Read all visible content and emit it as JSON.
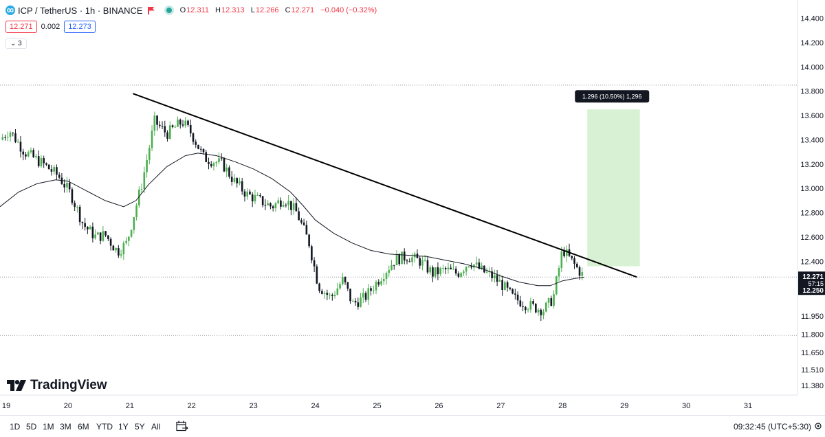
{
  "header": {
    "symbol": "ICP / TetherUS · 1h · BINANCE",
    "ohlc": {
      "open_label": "O",
      "open": "12.311",
      "high_label": "H",
      "high": "12.313",
      "low_label": "L",
      "low": "12.266",
      "close_label": "C",
      "close": "12.271",
      "change": "−0.040 (−0.32%)"
    },
    "bid": "12.271",
    "spread": "0.002",
    "ask": "12.273",
    "indicators_toggle": "3"
  },
  "logo_text": "TradingView",
  "colors": {
    "up": "#4caf50",
    "down": "#131722",
    "ma": "#131722",
    "trendline": "#000000",
    "target_zone": "#d8f0d3",
    "bid": "#f23645",
    "ask": "#2962ff"
  },
  "toolbar": {
    "timeframes": [
      "1D",
      "5D",
      "1M",
      "3M",
      "6M",
      "YTD",
      "1Y",
      "5Y",
      "All"
    ],
    "clock": "09:32:45 (UTC+5:30)"
  },
  "chart_data": {
    "type": "candlestick",
    "price_ticks": [
      "14.400",
      "14.200",
      "14.000",
      "13.800",
      "13.600",
      "13.400",
      "13.200",
      "13.000",
      "12.800",
      "12.600",
      "12.400",
      "12.250",
      "11.950",
      "11.800",
      "11.650",
      "11.510",
      "11.380"
    ],
    "date_ticks": [
      "19",
      "20",
      "21",
      "22",
      "23",
      "24",
      "25",
      "26",
      "27",
      "28",
      "29",
      "30",
      "31"
    ],
    "ylim": [
      11.3,
      14.55
    ],
    "xlim": [
      18.9,
      31.8
    ],
    "last_price": "12.271",
    "countdown": "57:15",
    "price_tag_2": "12.250",
    "horizontal_lines": [
      13.85,
      12.271,
      11.79
    ],
    "trendline": [
      [
        21.05,
        13.78
      ],
      [
        29.2,
        12.271
      ]
    ],
    "target_zone": {
      "x_from": 28.4,
      "x_to": 29.25,
      "y_from": 12.36,
      "y_to": 13.65
    },
    "measure_label": "1.296 (10.50%) 1,296",
    "ma_path": [
      [
        18.9,
        12.85
      ],
      [
        19.2,
        12.97
      ],
      [
        19.5,
        13.04
      ],
      [
        19.8,
        13.07
      ],
      [
        20.0,
        13.06
      ],
      [
        20.3,
        12.98
      ],
      [
        20.6,
        12.9
      ],
      [
        20.9,
        12.85
      ],
      [
        21.1,
        12.9
      ],
      [
        21.3,
        13.03
      ],
      [
        21.6,
        13.18
      ],
      [
        21.9,
        13.27
      ],
      [
        22.1,
        13.29
      ],
      [
        22.4,
        13.27
      ],
      [
        22.7,
        13.22
      ],
      [
        23.0,
        13.16
      ],
      [
        23.3,
        13.08
      ],
      [
        23.6,
        12.97
      ],
      [
        23.8,
        12.86
      ],
      [
        24.0,
        12.74
      ],
      [
        24.3,
        12.63
      ],
      [
        24.6,
        12.55
      ],
      [
        24.9,
        12.49
      ],
      [
        25.2,
        12.46
      ],
      [
        25.5,
        12.45
      ],
      [
        25.8,
        12.44
      ],
      [
        26.1,
        12.41
      ],
      [
        26.4,
        12.38
      ],
      [
        26.7,
        12.34
      ],
      [
        27.0,
        12.28
      ],
      [
        27.3,
        12.23
      ],
      [
        27.6,
        12.2
      ],
      [
        27.8,
        12.2
      ],
      [
        28.0,
        12.24
      ],
      [
        28.2,
        12.26
      ],
      [
        28.35,
        12.27
      ]
    ],
    "series_anchors": [
      [
        18.9,
        13.4
      ],
      [
        19.05,
        13.48
      ],
      [
        19.3,
        13.3
      ],
      [
        19.6,
        13.2
      ],
      [
        19.85,
        13.1
      ],
      [
        20.05,
        12.95
      ],
      [
        20.25,
        12.7
      ],
      [
        20.45,
        12.6
      ],
      [
        20.6,
        12.62
      ],
      [
        20.8,
        12.48
      ],
      [
        20.95,
        12.55
      ],
      [
        21.2,
        13.05
      ],
      [
        21.4,
        13.55
      ],
      [
        21.6,
        13.45
      ],
      [
        21.85,
        13.55
      ],
      [
        22.0,
        13.45
      ],
      [
        22.2,
        13.25
      ],
      [
        22.5,
        13.2
      ],
      [
        22.7,
        13.05
      ],
      [
        22.9,
        12.95
      ],
      [
        23.1,
        12.9
      ],
      [
        23.3,
        12.85
      ],
      [
        23.5,
        12.92
      ],
      [
        23.7,
        12.8
      ],
      [
        23.9,
        12.55
      ],
      [
        24.05,
        12.2
      ],
      [
        24.25,
        12.1
      ],
      [
        24.45,
        12.25
      ],
      [
        24.6,
        12.05
      ],
      [
        24.8,
        12.1
      ],
      [
        24.95,
        12.2
      ],
      [
        25.1,
        12.3
      ],
      [
        25.3,
        12.42
      ],
      [
        25.5,
        12.44
      ],
      [
        25.7,
        12.4
      ],
      [
        25.9,
        12.3
      ],
      [
        26.1,
        12.33
      ],
      [
        26.3,
        12.3
      ],
      [
        26.5,
        12.4
      ],
      [
        26.7,
        12.32
      ],
      [
        26.85,
        12.28
      ],
      [
        27.0,
        12.22
      ],
      [
        27.2,
        12.1
      ],
      [
        27.4,
        12.05
      ],
      [
        27.55,
        12.02
      ],
      [
        27.7,
        12.0
      ],
      [
        27.85,
        12.1
      ],
      [
        28.0,
        12.5
      ],
      [
        28.15,
        12.4
      ],
      [
        28.3,
        12.3
      ],
      [
        28.35,
        12.271
      ]
    ]
  }
}
